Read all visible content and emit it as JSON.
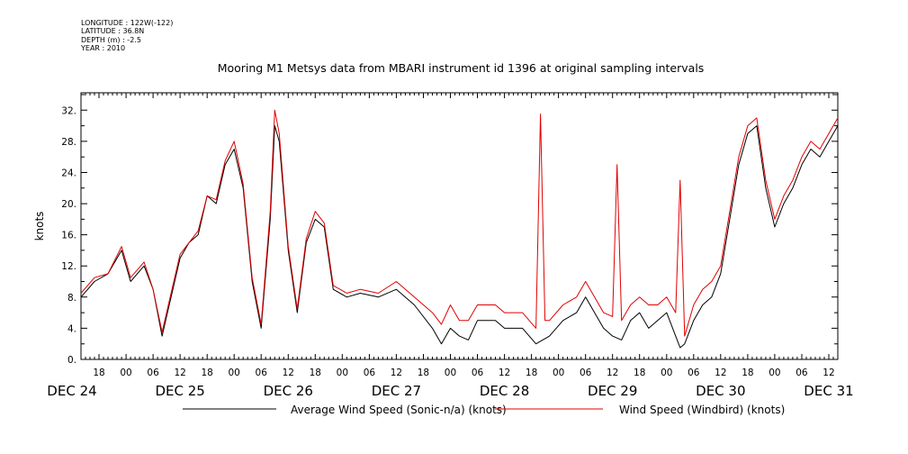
{
  "header": {
    "longitude": "LONGITUDE : 122W(-122)",
    "latitude": "LATITUDE : 36.8N",
    "depth": "DEPTH (m) : -2.5",
    "year": "YEAR : 2010"
  },
  "chart_data": {
    "type": "line",
    "title": "Mooring M1 Metsys data from MBARI instrument id 1396 at original sampling intervals",
    "ylabel": "knots",
    "ylim": [
      0,
      34
    ],
    "yticks": [
      0,
      4,
      8,
      12,
      16,
      20,
      24,
      28,
      32
    ],
    "ytick_labels": [
      "0.",
      "4.",
      "8.",
      "12.",
      "16.",
      "20.",
      "24.",
      "28.",
      "32."
    ],
    "xlim_hours": [
      14,
      182
    ],
    "x_origin": "DEC 24 00:00",
    "hour_tick_labels": [
      "18",
      "00",
      "06",
      "12",
      "18",
      "00",
      "06",
      "12",
      "18",
      "00",
      "06",
      "12",
      "18",
      "00",
      "06",
      "12",
      "18",
      "00",
      "06",
      "12",
      "18",
      "00",
      "06",
      "12",
      "18",
      "00",
      "06",
      "12"
    ],
    "day_labels": [
      "DEC 24",
      "DEC 25",
      "DEC 26",
      "DEC 27",
      "DEC 28",
      "DEC 29",
      "DEC 30",
      "DEC 31"
    ],
    "grid": false,
    "legend_position": "bottom",
    "series": [
      {
        "name": "Average Wind Speed (Sonic-n/a) (knots)",
        "color": "#000000",
        "points": [
          [
            14,
            8.0
          ],
          [
            17,
            10.0
          ],
          [
            20,
            11.0
          ],
          [
            23,
            14.0
          ],
          [
            25,
            10.0
          ],
          [
            28,
            12.0
          ],
          [
            30,
            9.0
          ],
          [
            32,
            3.0
          ],
          [
            34,
            8.0
          ],
          [
            36,
            13.0
          ],
          [
            38,
            15.0
          ],
          [
            40,
            16.0
          ],
          [
            42,
            21.0
          ],
          [
            44,
            20.0
          ],
          [
            46,
            25.0
          ],
          [
            48,
            27.0
          ],
          [
            50,
            22.0
          ],
          [
            52,
            10.0
          ],
          [
            54,
            4.0
          ],
          [
            56,
            18.0
          ],
          [
            57,
            30.0
          ],
          [
            58,
            28.0
          ],
          [
            60,
            14.0
          ],
          [
            62,
            6.0
          ],
          [
            64,
            15.0
          ],
          [
            66,
            18.0
          ],
          [
            68,
            17.0
          ],
          [
            70,
            9.0
          ],
          [
            73,
            8.0
          ],
          [
            76,
            8.5
          ],
          [
            80,
            8.0
          ],
          [
            84,
            9.0
          ],
          [
            88,
            7.0
          ],
          [
            92,
            4.0
          ],
          [
            94,
            2.0
          ],
          [
            96,
            4.0
          ],
          [
            98,
            3.0
          ],
          [
            100,
            2.5
          ],
          [
            102,
            5.0
          ],
          [
            106,
            5.0
          ],
          [
            108,
            4.0
          ],
          [
            112,
            4.0
          ],
          [
            115,
            2.0
          ],
          [
            118,
            3.0
          ],
          [
            121,
            5.0
          ],
          [
            124,
            6.0
          ],
          [
            126,
            8.0
          ],
          [
            128,
            6.0
          ],
          [
            130,
            4.0
          ],
          [
            132,
            3.0
          ],
          [
            134,
            2.5
          ],
          [
            136,
            5.0
          ],
          [
            138,
            6.0
          ],
          [
            140,
            4.0
          ],
          [
            142,
            5.0
          ],
          [
            144,
            6.0
          ],
          [
            146,
            3.0
          ],
          [
            147,
            1.5
          ],
          [
            148,
            2.0
          ],
          [
            150,
            5.0
          ],
          [
            152,
            7.0
          ],
          [
            154,
            8.0
          ],
          [
            156,
            11.0
          ],
          [
            158,
            18.0
          ],
          [
            160,
            25.0
          ],
          [
            162,
            29.0
          ],
          [
            164,
            30.0
          ],
          [
            166,
            22.0
          ],
          [
            168,
            17.0
          ],
          [
            170,
            20.0
          ],
          [
            172,
            22.0
          ],
          [
            174,
            25.0
          ],
          [
            176,
            27.0
          ],
          [
            178,
            26.0
          ],
          [
            180,
            28.0
          ],
          [
            182,
            30.0
          ]
        ]
      },
      {
        "name": "Wind Speed (Windbird) (knots)",
        "color": "#e00000",
        "points": [
          [
            14,
            8.5
          ],
          [
            17,
            10.5
          ],
          [
            20,
            11.0
          ],
          [
            23,
            14.5
          ],
          [
            25,
            10.5
          ],
          [
            28,
            12.5
          ],
          [
            30,
            9.0
          ],
          [
            32,
            3.5
          ],
          [
            34,
            8.5
          ],
          [
            36,
            13.5
          ],
          [
            38,
            15.0
          ],
          [
            40,
            16.5
          ],
          [
            42,
            21.0
          ],
          [
            44,
            20.5
          ],
          [
            46,
            25.5
          ],
          [
            48,
            28.0
          ],
          [
            50,
            22.5
          ],
          [
            52,
            10.5
          ],
          [
            54,
            4.5
          ],
          [
            56,
            19.0
          ],
          [
            57,
            32.0
          ],
          [
            58,
            29.0
          ],
          [
            60,
            14.5
          ],
          [
            62,
            6.5
          ],
          [
            64,
            15.5
          ],
          [
            66,
            19.0
          ],
          [
            68,
            17.5
          ],
          [
            70,
            9.5
          ],
          [
            73,
            8.5
          ],
          [
            76,
            9.0
          ],
          [
            80,
            8.5
          ],
          [
            84,
            10.0
          ],
          [
            88,
            8.0
          ],
          [
            92,
            6.0
          ],
          [
            94,
            4.5
          ],
          [
            96,
            7.0
          ],
          [
            98,
            5.0
          ],
          [
            100,
            5.0
          ],
          [
            102,
            7.0
          ],
          [
            106,
            7.0
          ],
          [
            108,
            6.0
          ],
          [
            112,
            6.0
          ],
          [
            115,
            4.0
          ],
          [
            116,
            31.5
          ],
          [
            117,
            5.0
          ],
          [
            118,
            5.0
          ],
          [
            121,
            7.0
          ],
          [
            124,
            8.0
          ],
          [
            126,
            10.0
          ],
          [
            128,
            8.0
          ],
          [
            130,
            6.0
          ],
          [
            132,
            5.5
          ],
          [
            133,
            25.0
          ],
          [
            134,
            5.0
          ],
          [
            136,
            7.0
          ],
          [
            138,
            8.0
          ],
          [
            140,
            7.0
          ],
          [
            142,
            7.0
          ],
          [
            144,
            8.0
          ],
          [
            146,
            6.0
          ],
          [
            147,
            23.0
          ],
          [
            148,
            3.0
          ],
          [
            150,
            7.0
          ],
          [
            152,
            9.0
          ],
          [
            154,
            10.0
          ],
          [
            156,
            12.0
          ],
          [
            158,
            19.0
          ],
          [
            160,
            26.0
          ],
          [
            162,
            30.0
          ],
          [
            164,
            31.0
          ],
          [
            166,
            23.0
          ],
          [
            168,
            18.0
          ],
          [
            170,
            21.0
          ],
          [
            172,
            23.0
          ],
          [
            174,
            26.0
          ],
          [
            176,
            28.0
          ],
          [
            178,
            27.0
          ],
          [
            180,
            29.0
          ],
          [
            182,
            31.0
          ]
        ]
      }
    ]
  }
}
